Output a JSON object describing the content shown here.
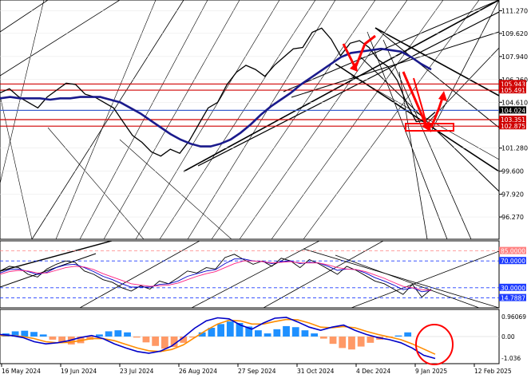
{
  "chart_data": [
    {
      "panel": "price",
      "type": "line",
      "ylim": [
        94.65,
        112.05
      ],
      "yticks": [
        "111.270",
        "109.620",
        "107.940",
        "106.260",
        "104.610",
        "101.280",
        "99.600",
        "97.920",
        "96.270"
      ],
      "tick_values": [
        111.27,
        109.62,
        107.94,
        106.26,
        104.61,
        101.28,
        99.6,
        97.92,
        96.27
      ],
      "level_labels": [
        {
          "text": "105.943",
          "value": 105.943,
          "bg": "#d00000",
          "fg": "#ffffff"
        },
        {
          "text": "105.491",
          "value": 105.491,
          "bg": "#d00000",
          "fg": "#ffffff"
        },
        {
          "text": "104.024",
          "value": 104.024,
          "bg": "#000000",
          "fg": "#ffffff"
        },
        {
          "text": "103.351",
          "value": 103.351,
          "bg": "#d00000",
          "fg": "#ffffff"
        },
        {
          "text": "102.875",
          "value": 102.875,
          "bg": "#d00000",
          "fg": "#ffffff"
        }
      ],
      "hlines": [
        {
          "value": 105.943,
          "color": "#d00000"
        },
        {
          "value": 105.491,
          "color": "#d00000"
        },
        {
          "value": 104.024,
          "color": "#3a5fcd"
        },
        {
          "value": 103.351,
          "color": "#d00000"
        },
        {
          "value": 102.875,
          "color": "#d00000"
        }
      ],
      "series": [
        {
          "values": [
            105.3,
            105.6,
            105.0,
            104.6,
            104.2,
            105.0,
            105.5,
            106.0,
            105.9,
            105.2,
            105.0,
            104.6,
            104.2,
            103.2,
            102.2,
            101.7,
            101.0,
            100.7,
            101.2,
            100.9,
            101.8,
            103.0,
            104.2,
            104.6,
            105.9,
            106.8,
            107.3,
            107.0,
            106.5,
            107.3,
            107.9,
            108.5,
            108.6,
            109.7,
            110.0,
            109.2,
            108.0,
            108.9,
            109.1,
            108.6,
            107.7,
            107.2,
            106.2,
            104.5,
            103.2,
            103.3,
            103.9
          ],
          "color": "#000000"
        },
        {
          "values": [
            104.9,
            105.0,
            104.9,
            104.9,
            104.9,
            104.8,
            104.9,
            104.9,
            105.0,
            105.0,
            105.0,
            104.8,
            104.6,
            104.2,
            103.8,
            103.3,
            102.8,
            102.3,
            101.9,
            101.6,
            101.4,
            101.4,
            101.6,
            101.9,
            102.4,
            103.0,
            103.7,
            104.3,
            104.8,
            105.3,
            105.9,
            106.4,
            106.9,
            107.4,
            107.9,
            108.2,
            108.3,
            108.4,
            108.5,
            108.4,
            108.3,
            107.9,
            107.4,
            107.0
          ],
          "color": "#1a1a8c"
        }
      ],
      "shape_colors": {
        "up_arrows": "#ff0000",
        "channel_lines": "#000000",
        "box": "#ff0000"
      }
    },
    {
      "panel": "oscillator",
      "type": "line",
      "ylim": [
        0,
        100
      ],
      "yticks": [
        "85.0000",
        "70.0000",
        "30.0000",
        "14.7887"
      ],
      "tick_values": [
        85,
        70,
        30,
        14.7887
      ],
      "tick_colors": [
        "#ff8080",
        "#1e3cff",
        "#1e3cff",
        "#1e3cff"
      ],
      "series": [
        {
          "values": [
            55,
            62,
            60,
            50,
            46,
            58,
            65,
            70,
            68,
            55,
            50,
            42,
            38,
            30,
            25,
            33,
            28,
            40,
            36,
            45,
            55,
            52,
            60,
            58,
            75,
            80,
            72,
            65,
            70,
            62,
            74,
            70,
            60,
            72,
            66,
            58,
            50,
            62,
            56,
            48,
            40,
            36,
            28,
            20,
            35,
            16,
            28
          ],
          "color": "#000000"
        },
        {
          "values": [
            52,
            57,
            58,
            54,
            50,
            53,
            60,
            64,
            65,
            60,
            54,
            47,
            42,
            36,
            31,
            31,
            31,
            35,
            36,
            40,
            47,
            51,
            55,
            57,
            66,
            73,
            73,
            70,
            69,
            66,
            69,
            70,
            66,
            68,
            67,
            62,
            56,
            58,
            57,
            52,
            45,
            40,
            34,
            27,
            30,
            24,
            26
          ],
          "color": "#0000c8"
        },
        {
          "values": [
            50,
            54,
            56,
            55,
            52,
            52,
            56,
            60,
            62,
            61,
            57,
            51,
            46,
            41,
            36,
            34,
            32,
            33,
            34,
            37,
            42,
            47,
            51,
            54,
            60,
            66,
            70,
            70,
            69,
            67,
            68,
            69,
            67,
            67,
            67,
            64,
            60,
            58,
            57,
            54,
            49,
            44,
            38,
            32,
            30,
            27,
            26
          ],
          "color": "#ff2080"
        }
      ]
    },
    {
      "panel": "macd",
      "type": "bar",
      "ylim": [
        -1.3,
        1.3
      ],
      "yticks": [
        "0.96069",
        "0.00",
        "-1.036"
      ],
      "tick_values": [
        0.96069,
        0.0,
        -1.036
      ],
      "histogram": [
        0.15,
        0.25,
        0.28,
        0.22,
        0.1,
        -0.15,
        -0.3,
        -0.38,
        -0.32,
        -0.15,
        0.1,
        0.25,
        0.3,
        0.2,
        -0.05,
        -0.28,
        -0.45,
        -0.58,
        -0.5,
        -0.3,
        -0.05,
        0.2,
        0.42,
        0.6,
        0.72,
        0.65,
        0.48,
        0.3,
        0.15,
        0.35,
        0.5,
        0.45,
        0.3,
        0.15,
        -0.1,
        -0.35,
        -0.55,
        -0.62,
        -0.48,
        -0.3,
        -0.15,
        -0.05,
        0.05,
        0.2
      ],
      "macd_line": [
        0.1,
        0.05,
        -0.05,
        -0.25,
        -0.35,
        -0.3,
        -0.2,
        -0.05,
        0.05,
        -0.1,
        -0.35,
        -0.55,
        -0.72,
        -0.8,
        -0.7,
        -0.45,
        -0.05,
        0.4,
        0.75,
        0.9,
        0.85,
        0.55,
        0.35,
        0.65,
        0.88,
        0.92,
        0.7,
        0.45,
        0.3,
        0.45,
        0.55,
        0.3,
        0.1,
        -0.05,
        -0.15,
        -0.3,
        -0.55,
        -0.9,
        -1.05
      ],
      "signal_line": [
        0.05,
        0.05,
        0.0,
        -0.1,
        -0.25,
        -0.3,
        -0.28,
        -0.2,
        -0.1,
        -0.1,
        -0.2,
        -0.38,
        -0.55,
        -0.68,
        -0.72,
        -0.62,
        -0.4,
        -0.05,
        0.3,
        0.6,
        0.78,
        0.75,
        0.6,
        0.6,
        0.72,
        0.82,
        0.8,
        0.65,
        0.45,
        0.42,
        0.48,
        0.42,
        0.25,
        0.1,
        -0.02,
        -0.15,
        -0.35,
        -0.6,
        -0.85
      ],
      "colors": {
        "pos_bar": "#1e90ff",
        "neg_bar": "#ff9966",
        "macd": "#0000c8",
        "signal": "#ff8c00",
        "circle": "#ff0000"
      }
    }
  ],
  "x_axis": {
    "labels": [
      "16 May 2024",
      "19 Jun 2024",
      "23 Jul 2024",
      "26 Aug 2024",
      "27 Sep 2024",
      "31 Oct 2024",
      "4 Dec 2024",
      "9 Jan 2025",
      "12 Feb 2025"
    ]
  }
}
